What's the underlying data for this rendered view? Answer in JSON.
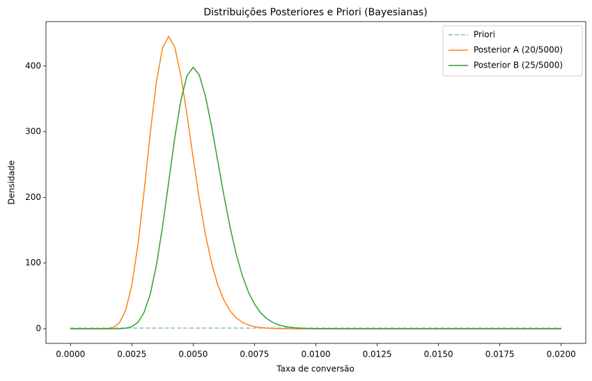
{
  "chart_data": {
    "type": "line",
    "title": "Distribuições Posteriores e Priori (Bayesianas)",
    "x_label": "Taxa de conversão",
    "y_label": "Densidade",
    "x": [
      0,
      0.0005,
      0.001,
      0.00125,
      0.0015,
      0.00175,
      0.002,
      0.00225,
      0.0025,
      0.00275,
      0.003,
      0.00325,
      0.0035,
      0.00375,
      0.004,
      0.00425,
      0.0045,
      0.00475,
      0.005,
      0.00525,
      0.0055,
      0.00575,
      0.006,
      0.00625,
      0.0065,
      0.00675,
      0.007,
      0.00725,
      0.0075,
      0.00775,
      0.008,
      0.00825,
      0.0085,
      0.00875,
      0.009,
      0.00925,
      0.0095,
      0.00975,
      0.01,
      0.011,
      0.0125,
      0.015,
      0.0175,
      0.02
    ],
    "series": [
      {
        "name": "Priori",
        "color": "#8ab8d4",
        "dashed": true,
        "values": [
          1,
          1,
          1,
          1,
          1,
          1,
          1,
          1,
          1,
          1,
          1,
          1,
          1,
          1,
          1,
          1,
          1,
          1,
          1,
          1,
          1,
          1,
          1,
          1,
          1,
          1,
          1,
          1,
          1,
          1,
          1,
          1,
          1,
          1,
          1,
          1,
          1,
          1,
          1,
          1,
          1,
          1,
          1,
          1
        ]
      },
      {
        "name": "Posterior A (20/5000)",
        "color": "#ff7f0e",
        "dashed": false,
        "values": [
          0,
          0,
          0,
          0.03,
          0.36,
          2.3,
          9.3,
          28.2,
          66.6,
          128.3,
          209.4,
          297.7,
          375.5,
          427.2,
          445,
          428.6,
          385.1,
          325.4,
          260.1,
          197.7,
          143.6,
          100.1,
          67.2,
          43.6,
          27.3,
          16.6,
          9.9,
          5.7,
          3.2,
          1.8,
          1.0,
          0.5,
          0.27,
          0.13,
          0.06,
          0.03,
          0.01,
          0.01,
          0,
          0,
          0,
          0,
          0,
          0
        ]
      },
      {
        "name": "Posterior B (25/5000)",
        "color": "#2ca02c",
        "dashed": false,
        "values": [
          0,
          0,
          0,
          0,
          0,
          0.02,
          0.15,
          0.8,
          3.2,
          9.9,
          24.9,
          52.8,
          96.4,
          155.0,
          223.0,
          291.1,
          348.1,
          385.3,
          398,
          386.2,
          353.9,
          308.1,
          255.8,
          203.4,
          155.3,
          114.3,
          81.3,
          56.0,
          37.4,
          24.4,
          15.4,
          9.5,
          5.8,
          3.4,
          2.0,
          1.1,
          0.6,
          0.35,
          0.19,
          0,
          0,
          0,
          0,
          0
        ]
      }
    ],
    "xlim": [
      -0.001,
      0.021
    ],
    "ylim": [
      -22.3,
      467.6
    ],
    "xticks": [
      {
        "value": 0,
        "label": "0.0000"
      },
      {
        "value": 0.0025,
        "label": "0.0025"
      },
      {
        "value": 0.005,
        "label": "0.0050"
      },
      {
        "value": 0.0075,
        "label": "0.0075"
      },
      {
        "value": 0.01,
        "label": "0.0100"
      },
      {
        "value": 0.0125,
        "label": "0.0125"
      },
      {
        "value": 0.015,
        "label": "0.0150"
      },
      {
        "value": 0.0175,
        "label": "0.0175"
      },
      {
        "value": 0.02,
        "label": "0.0200"
      }
    ],
    "yticks": [
      0,
      100,
      200,
      300,
      400
    ],
    "grid": false,
    "legend": "upper-right"
  }
}
